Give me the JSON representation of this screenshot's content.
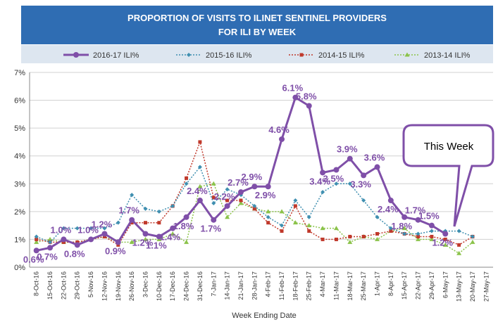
{
  "chart_data": {
    "type": "line",
    "title": [
      "PROPORTION OF VISITS TO ILINET SENTINEL PROVIDERS",
      "FOR ILI BY WEEK"
    ],
    "x_label": "Week Ending Date",
    "annotation": "This Week",
    "categories": [
      "8-Oct-16",
      "15-Oct-16",
      "22-Oct-16",
      "29-Oct-16",
      "5-Nov-16",
      "12-Nov-16",
      "19-Nov-16",
      "26-Nov-16",
      "3-Dec-16",
      "10-Dec-16",
      "17-Dec-16",
      "24-Dec-16",
      "31-Dec-16",
      "7-Jan-17",
      "14-Jan-17",
      "21-Jan-17",
      "28-Jan-17",
      "4-Feb-17",
      "11-Feb-17",
      "18-Feb-17",
      "25-Feb-17",
      "4-Mar-17",
      "11-Mar-17",
      "18-Mar-17",
      "25-Mar-17",
      "1-Apr-17",
      "8-Apr-17",
      "15-Apr-17",
      "22-Apr-17",
      "29-Apr-17",
      "6-May-17",
      "13-May-17",
      "20-May-17",
      "27-May-17"
    ],
    "ylim": [
      0,
      7
    ],
    "yticks": [
      {
        "value": 0,
        "label": "0%"
      },
      {
        "value": 1,
        "label": "1%"
      },
      {
        "value": 2,
        "label": "2%"
      },
      {
        "value": 3,
        "label": "3%"
      },
      {
        "value": 4,
        "label": "4%"
      },
      {
        "value": 5,
        "label": "5%"
      },
      {
        "value": 6,
        "label": "6%"
      },
      {
        "value": 7,
        "label": "7%"
      }
    ],
    "grid": true,
    "series": [
      {
        "name": "2016-17 ILI%",
        "color": "#7f4fa8",
        "line_style": "solid",
        "marker": "circle",
        "values": [
          0.6,
          0.7,
          1.0,
          0.8,
          1.0,
          1.2,
          0.9,
          1.7,
          1.2,
          1.1,
          1.4,
          1.8,
          2.4,
          1.7,
          2.2,
          2.7,
          2.9,
          2.9,
          4.6,
          6.1,
          5.8,
          3.4,
          3.5,
          3.9,
          3.3,
          3.6,
          2.4,
          1.8,
          1.7,
          1.5,
          1.2,
          null,
          null,
          null
        ],
        "value_labels": [
          "0.6%",
          "0.7%",
          "1.0%",
          "0.8%",
          "1.0%",
          "1.2%",
          "0.9%",
          "1.7%",
          "1.2%",
          "1.1%",
          "1.4%",
          "1.8%",
          "2.4%",
          "1.7%",
          "2.2%",
          "2.7%",
          "2.9%",
          "2.9%",
          "4.6%",
          "6.1%",
          "5.8%",
          "3.4%",
          "3.5%",
          "3.9%",
          "3.3%",
          "3.6%",
          "2.4%",
          "1.8%",
          "1.7%",
          "1.5%",
          "1.2%",
          null,
          null,
          null
        ]
      },
      {
        "name": "2015-16 ILI%",
        "color": "#3f8fb0",
        "line_style": "dotted",
        "marker": "diamond",
        "values": [
          1.1,
          0.9,
          1.4,
          1.4,
          1.4,
          1.4,
          1.6,
          2.6,
          2.1,
          2.0,
          2.2,
          3.0,
          3.6,
          2.3,
          2.8,
          2.6,
          2.2,
          1.8,
          1.5,
          2.4,
          1.8,
          2.7,
          3.0,
          3.0,
          2.4,
          1.8,
          1.4,
          1.2,
          1.2,
          1.3,
          1.3,
          1.3,
          1.1,
          null
        ]
      },
      {
        "name": "2014-15 ILI%",
        "color": "#c0392b",
        "line_style": "dotted",
        "marker": "square",
        "values": [
          1.0,
          0.9,
          0.9,
          0.9,
          1.0,
          1.1,
          0.8,
          1.6,
          1.6,
          1.6,
          2.2,
          3.2,
          4.5,
          2.5,
          2.4,
          2.4,
          2.1,
          1.6,
          1.3,
          2.2,
          1.3,
          1.0,
          1.0,
          1.1,
          1.1,
          1.2,
          1.3,
          1.2,
          1.1,
          1.1,
          1.0,
          0.8,
          1.1,
          null
        ]
      },
      {
        "name": "2013-14 ILI%",
        "color": "#8bc34a",
        "line_style": "dotted",
        "marker": "triangle",
        "values": [
          0.9,
          1.0,
          0.9,
          0.9,
          1.0,
          1.1,
          0.9,
          0.9,
          1.0,
          1.0,
          1.2,
          0.9,
          2.9,
          3.0,
          1.8,
          2.3,
          2.1,
          2.0,
          2.0,
          1.6,
          1.5,
          1.4,
          1.4,
          0.9,
          1.1,
          1.0,
          1.3,
          1.4,
          1.0,
          1.0,
          0.8,
          0.5,
          0.9,
          null
        ]
      }
    ]
  }
}
